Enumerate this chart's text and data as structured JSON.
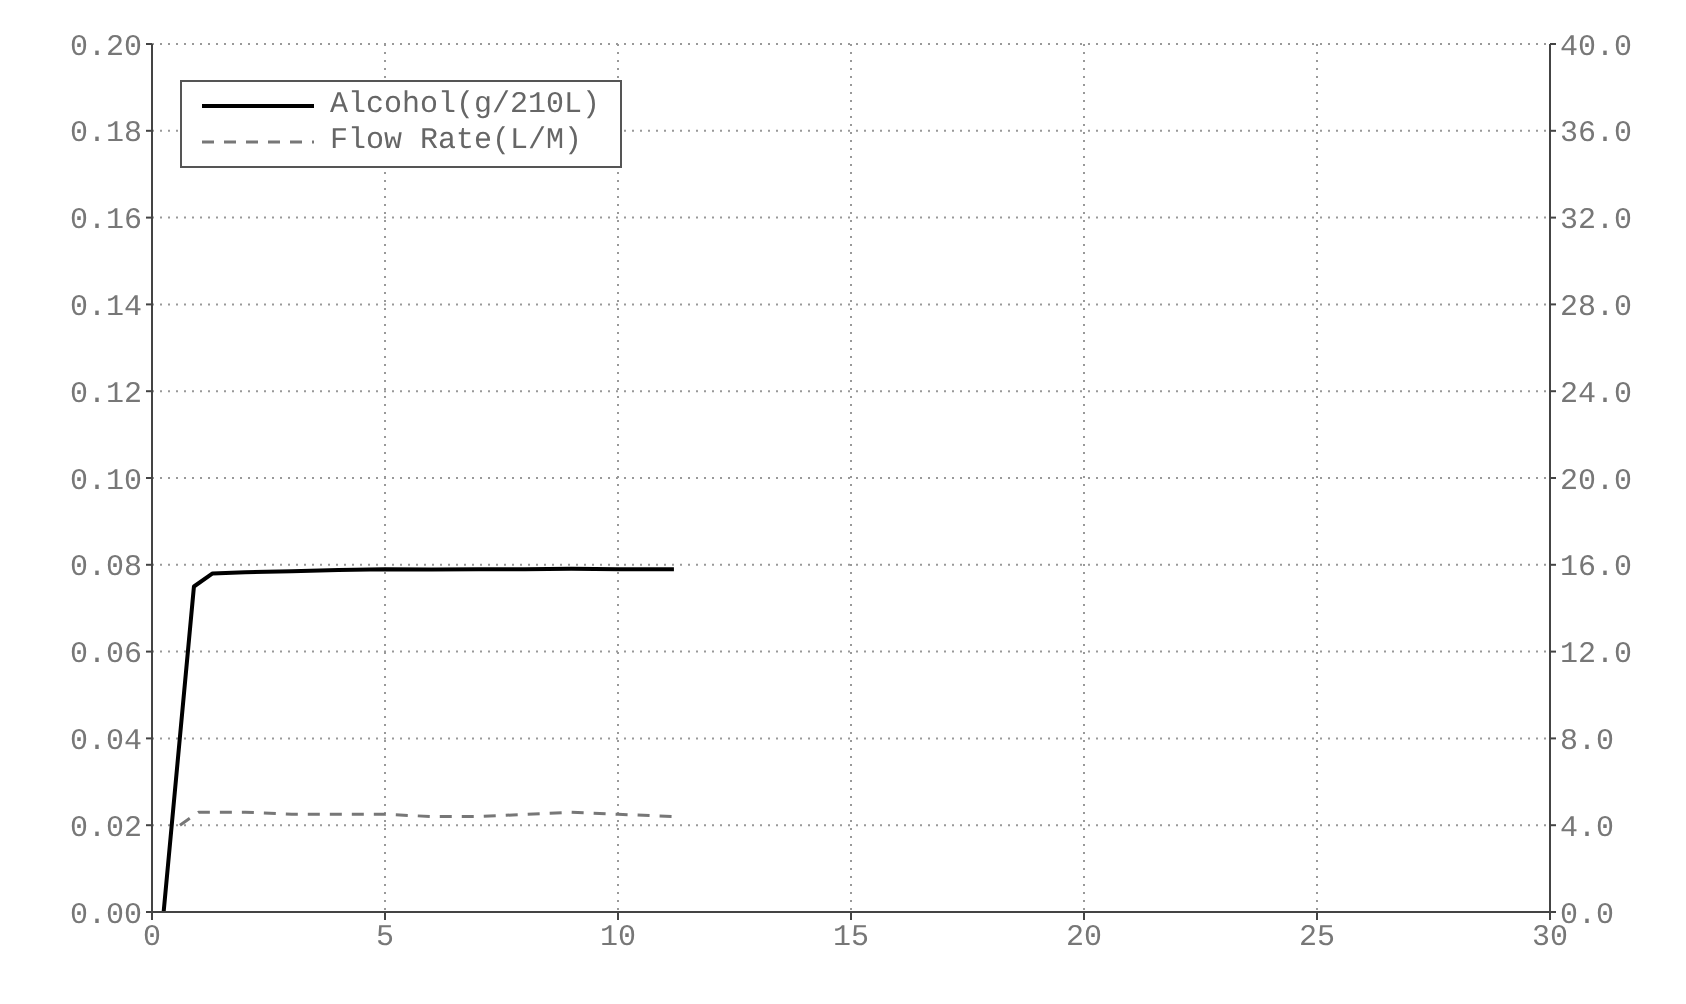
{
  "chart_data": {
    "type": "line",
    "xlim": [
      0,
      30
    ],
    "xticks": [
      0,
      5,
      10,
      15,
      20,
      25,
      30
    ],
    "ylim": [
      0,
      0.2
    ],
    "yticks": [
      {
        "value": 0,
        "label": "0.00"
      },
      {
        "value": 0.02,
        "label": "0.02"
      },
      {
        "value": 0.04,
        "label": "0.04"
      },
      {
        "value": 0.06,
        "label": "0.06"
      },
      {
        "value": 0.08,
        "label": "0.08"
      },
      {
        "value": 0.1,
        "label": "0.10"
      },
      {
        "value": 0.12,
        "label": "0.12"
      },
      {
        "value": 0.14,
        "label": "0.14"
      },
      {
        "value": 0.16,
        "label": "0.16"
      },
      {
        "value": 0.18,
        "label": "0.18"
      },
      {
        "value": 0.2,
        "label": "0.20"
      }
    ],
    "y2lim": [
      0,
      40
    ],
    "y2ticks": [
      {
        "value": 0,
        "label": "0.0"
      },
      {
        "value": 4,
        "label": "4.0"
      },
      {
        "value": 8,
        "label": "8.0"
      },
      {
        "value": 12,
        "label": "12.0"
      },
      {
        "value": 16,
        "label": "16.0"
      },
      {
        "value": 20,
        "label": "20.0"
      },
      {
        "value": 24,
        "label": "24.0"
      },
      {
        "value": 28,
        "label": "28.0"
      },
      {
        "value": 32,
        "label": "32.0"
      },
      {
        "value": 36,
        "label": "36.0"
      },
      {
        "value": 40,
        "label": "40.0"
      }
    ],
    "grid": true,
    "legend": "top left",
    "marker": "none",
    "series": [
      {
        "name": "Alcohol(g/210L)",
        "color": "#000000",
        "line_style": "solid",
        "x": [
          0.25,
          0.9,
          1.3,
          2,
          3,
          4,
          5,
          6,
          7,
          8,
          9,
          10,
          11.2
        ],
        "values": [
          0,
          0.075,
          0.078,
          0.0783,
          0.0785,
          0.0788,
          0.079,
          0.0789,
          0.079,
          0.079,
          0.0791,
          0.079,
          0.079
        ]
      },
      {
        "name": "Flow Rate(L/M)",
        "color": "#777777",
        "line_style": "dashed",
        "axis": "y2",
        "x": [
          0.6,
          1,
          2,
          3,
          4,
          5,
          6,
          7,
          8,
          9,
          10,
          11.2
        ],
        "values": [
          4.0,
          4.6,
          4.6,
          4.5,
          4.5,
          4.5,
          4.4,
          4.4,
          4.5,
          4.6,
          4.5,
          4.4
        ]
      }
    ]
  }
}
